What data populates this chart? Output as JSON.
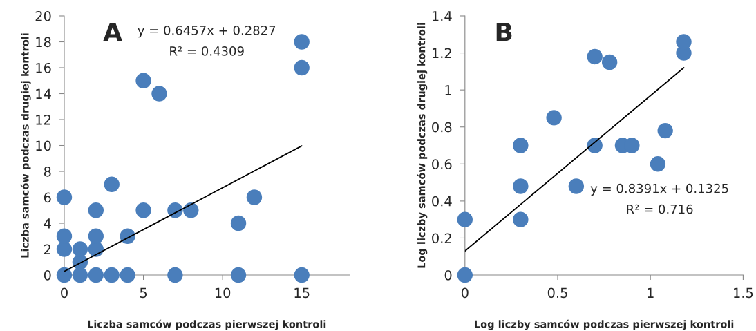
{
  "chart_data": [
    {
      "type": "scatter",
      "xlabel": "Liczba samców podczas pierwszej kontroli",
      "ylabel": "Liczba samców podczas drugiej kontroli",
      "annotations": [
        "A",
        "y = 0.6457x + 0.2827",
        "R² = 0.4309"
      ],
      "xlim": [
        0,
        18
      ],
      "xticks": [
        0,
        5,
        10,
        15
      ],
      "ylim": [
        0,
        20
      ],
      "yticks": [
        0,
        2,
        4,
        6,
        8,
        10,
        12,
        14,
        16,
        18,
        20
      ],
      "grid": false,
      "legend": false,
      "series": [
        {
          "marker": "circle",
          "color": "#4a7ebb",
          "x": [
            0,
            0,
            0,
            0,
            1,
            1,
            1,
            2,
            2,
            2,
            2,
            3,
            3,
            4,
            4,
            5,
            5,
            6,
            7,
            7,
            8,
            11,
            11,
            12,
            15,
            15,
            15
          ],
          "values": [
            0,
            2,
            3,
            6,
            0,
            1,
            2,
            0,
            2,
            3,
            5,
            0,
            7,
            0,
            3,
            5,
            15,
            14,
            0,
            5,
            5,
            0,
            4,
            6,
            0,
            16,
            18
          ]
        },
        {
          "type": "line",
          "marker": "none",
          "color": "#000000",
          "x": [
            0,
            15
          ],
          "values": [
            0.28,
            9.97
          ]
        }
      ]
    },
    {
      "type": "scatter",
      "xlabel": "Log liczby samców podczas pierwszej kontroli",
      "ylabel": "Log liczby samców podczas drugiej kontroli",
      "annotations": [
        "B",
        "y = 0.8391x + 0.1325",
        "R² = 0.716"
      ],
      "xlim": [
        0,
        1.5
      ],
      "xticks": [
        0,
        0.5,
        1,
        1.5
      ],
      "ylim": [
        0,
        1.4
      ],
      "yticks": [
        0,
        0.2,
        0.4,
        0.6,
        0.8,
        1,
        1.2,
        1.4
      ],
      "grid": false,
      "legend": false,
      "series": [
        {
          "marker": "circle",
          "color": "#4a7ebb",
          "x": [
            0,
            0,
            0.3,
            0.3,
            0.3,
            0.48,
            0.6,
            0.7,
            0.7,
            0.78,
            0.85,
            0.9,
            1.04,
            1.08,
            1.18,
            1.18
          ],
          "values": [
            0,
            0.3,
            0.3,
            0.48,
            0.7,
            0.85,
            0.48,
            0.7,
            1.18,
            1.15,
            0.7,
            0.7,
            0.6,
            0.78,
            1.2,
            1.26
          ]
        },
        {
          "type": "line",
          "marker": "none",
          "color": "#000000",
          "x": [
            0,
            1.18
          ],
          "values": [
            0.13,
            1.12
          ]
        }
      ]
    }
  ]
}
